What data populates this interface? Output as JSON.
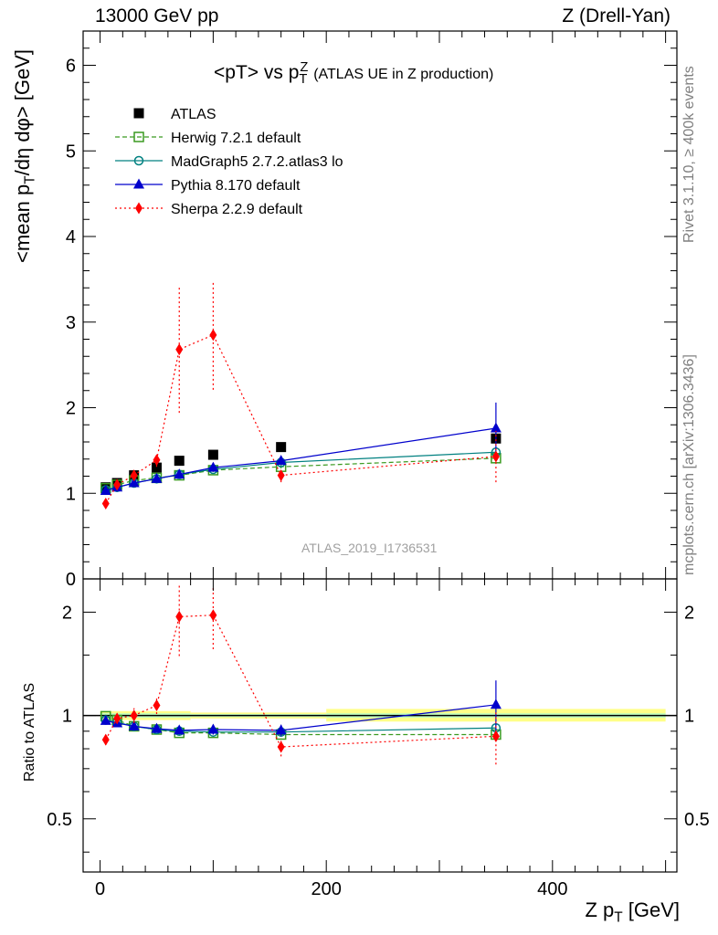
{
  "header": {
    "left": "13000 GeV pp",
    "right": "Z (Drell-Yan)"
  },
  "side_labels": {
    "rivet": "Rivet 3.1.10, ≥ 400k events",
    "mcplots": "mcplots.cern.ch [arXiv:1306.3436]"
  },
  "chart_data": [
    {
      "type": "line",
      "title": "<pT> vs p",
      "title_sup": "Z",
      "title_sub": "T",
      "title_suffix": "(ATLAS UE in Z production)",
      "ylabel": "<mean p_T/dη dφ> [GeV]",
      "ylabel_parts": {
        "a": "<mean p",
        "sub": "T",
        "b": "/dη dφ> [GeV]"
      },
      "xlim": [
        -15,
        510
      ],
      "ylim": [
        0,
        6.4
      ],
      "yticks": [
        0,
        1,
        2,
        3,
        4,
        5,
        6
      ],
      "ytick_labels": [
        "0",
        "1",
        "2",
        "3",
        "4",
        "5",
        "6"
      ],
      "annotation": "ATLAS_2019_I1736531",
      "legend_position": "top-left",
      "x": [
        5,
        15,
        30,
        50,
        70,
        100,
        160,
        350
      ],
      "series": [
        {
          "name": "ATLAS",
          "color": "#000000",
          "marker": "square-filled",
          "line": "none",
          "y": [
            1.07,
            1.12,
            1.21,
            1.3,
            1.38,
            1.45,
            1.54,
            1.64
          ],
          "err": [
            0.02,
            0.02,
            0.02,
            0.03,
            0.03,
            0.03,
            0.04,
            0.06
          ]
        },
        {
          "name": "Herwig 7.2.1 default",
          "color": "#3a9a20",
          "marker": "square-open",
          "line": "dashed",
          "y": [
            1.06,
            1.1,
            1.15,
            1.18,
            1.21,
            1.27,
            1.31,
            1.41
          ],
          "err": [
            0.01,
            0.01,
            0.01,
            0.01,
            0.01,
            0.02,
            0.02,
            0.03
          ]
        },
        {
          "name": "MadGraph5 2.7.2.atlas3 lo",
          "color": "#008080",
          "marker": "circle-open",
          "line": "solid",
          "y": [
            1.04,
            1.07,
            1.12,
            1.17,
            1.22,
            1.28,
            1.36,
            1.48
          ],
          "err": [
            0.01,
            0.01,
            0.01,
            0.01,
            0.02,
            0.02,
            0.03,
            0.03
          ]
        },
        {
          "name": "Pythia 8.170 default",
          "color": "#0000cc",
          "marker": "triangle-filled",
          "line": "solid",
          "y": [
            1.03,
            1.07,
            1.12,
            1.17,
            1.22,
            1.3,
            1.38,
            1.76
          ],
          "err": [
            0.02,
            0.02,
            0.02,
            0.03,
            0.03,
            0.04,
            0.05,
            0.3
          ]
        },
        {
          "name": "Sherpa 2.2.9 default",
          "color": "#ff0000",
          "marker": "diamond-filled",
          "line": "dotted",
          "y": [
            0.88,
            1.1,
            1.21,
            1.39,
            2.68,
            2.85,
            1.21,
            1.43
          ],
          "err": [
            0.04,
            0.04,
            0.06,
            0.08,
            0.74,
            0.64,
            0.08,
            0.3
          ]
        }
      ]
    },
    {
      "type": "line",
      "title": "ratio",
      "ylabel": "Ratio to ATLAS",
      "xlabel": "Z p_T [GeV]",
      "xlabel_parts": {
        "a": "Z p",
        "sub": "T",
        "b": " [GeV]"
      },
      "log_y": true,
      "ylim": [
        0.35,
        2.5
      ],
      "yticks": [
        0.5,
        1,
        2
      ],
      "ytick_labels": [
        "0.5",
        "1",
        "2"
      ],
      "xticks": [
        0,
        200,
        400
      ],
      "xtick_labels": [
        "0",
        "200",
        "400"
      ],
      "band": [
        {
          "x0": 0,
          "x1": 80,
          "inner": [
            0.985,
            1.015
          ],
          "outer": [
            0.97,
            1.03
          ]
        },
        {
          "x0": 80,
          "x1": 200,
          "inner": [
            0.99,
            1.01
          ],
          "outer": [
            0.98,
            1.02
          ]
        },
        {
          "x0": 200,
          "x1": 500,
          "inner": [
            0.985,
            1.015
          ],
          "outer": [
            0.96,
            1.045
          ]
        }
      ],
      "x": [
        5,
        15,
        30,
        50,
        70,
        100,
        160,
        350
      ],
      "series": [
        {
          "name": "Herwig 7.2.1 default",
          "color": "#3a9a20",
          "marker": "square-open",
          "line": "dashed",
          "y": [
            0.995,
            0.97,
            0.93,
            0.91,
            0.89,
            0.89,
            0.88,
            0.88
          ],
          "err": [
            0.01,
            0.01,
            0.01,
            0.01,
            0.01,
            0.01,
            0.01,
            0.02
          ]
        },
        {
          "name": "MadGraph5 2.7.2.atlas3 lo",
          "color": "#008080",
          "marker": "circle-open",
          "line": "solid",
          "y": [
            0.97,
            0.955,
            0.93,
            0.91,
            0.9,
            0.895,
            0.895,
            0.92
          ],
          "err": [
            0.01,
            0.01,
            0.01,
            0.01,
            0.01,
            0.01,
            0.02,
            0.02
          ]
        },
        {
          "name": "Pythia 8.170 default",
          "color": "#0000cc",
          "marker": "triangle-filled",
          "line": "solid",
          "y": [
            0.965,
            0.95,
            0.93,
            0.915,
            0.905,
            0.91,
            0.905,
            1.075
          ],
          "err": [
            0.015,
            0.015,
            0.015,
            0.02,
            0.02,
            0.03,
            0.035,
            0.19
          ]
        },
        {
          "name": "Sherpa 2.2.9 default",
          "color": "#ff0000",
          "marker": "diamond-filled",
          "line": "dotted",
          "y": [
            0.85,
            0.98,
            1.0,
            1.07,
            1.94,
            1.96,
            0.81,
            0.87
          ],
          "err": [
            0.03,
            0.03,
            0.05,
            0.06,
            0.45,
            0.4,
            0.05,
            0.15
          ]
        }
      ]
    }
  ]
}
